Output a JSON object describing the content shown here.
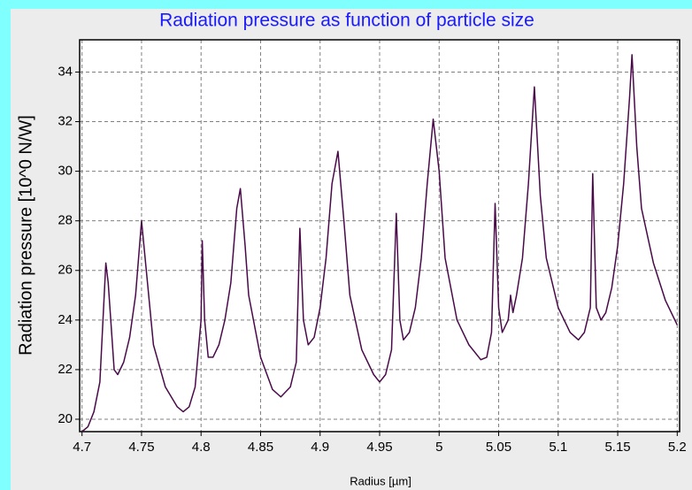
{
  "chart_data": {
    "type": "line",
    "title": "Radiation pressure as function of particle size",
    "x_label": "Radius [µm]",
    "y_label": "Radiation pressure [10^0 N/W]",
    "x": [
      4.7,
      4.705,
      4.71,
      4.715,
      4.72,
      4.722,
      4.727,
      4.73,
      4.735,
      4.74,
      4.745,
      4.75,
      4.755,
      4.76,
      4.77,
      4.78,
      4.785,
      4.79,
      4.795,
      4.8,
      4.801,
      4.803,
      4.806,
      4.81,
      4.815,
      4.82,
      4.825,
      4.83,
      4.833,
      4.837,
      4.84,
      4.85,
      4.86,
      4.867,
      4.875,
      4.88,
      4.883,
      4.886,
      4.89,
      4.895,
      4.9,
      4.905,
      4.91,
      4.915,
      4.92,
      4.925,
      4.935,
      4.945,
      4.95,
      4.955,
      4.96,
      4.964,
      4.967,
      4.97,
      4.975,
      4.98,
      4.985,
      4.99,
      4.995,
      5.0,
      5.005,
      5.015,
      5.025,
      5.035,
      5.04,
      5.044,
      5.047,
      5.05,
      5.053,
      5.058,
      5.06,
      5.062,
      5.065,
      5.07,
      5.075,
      5.08,
      5.085,
      5.09,
      5.1,
      5.11,
      5.117,
      5.122,
      5.127,
      5.129,
      5.132,
      5.136,
      5.14,
      5.145,
      5.15,
      5.155,
      5.16,
      5.162,
      5.166,
      5.17,
      5.18,
      5.19,
      5.2
    ],
    "series": [
      {
        "name": "Radiation pressure",
        "color": "#4a0a4a",
        "values": [
          19.5,
          19.7,
          20.3,
          21.5,
          26.3,
          25.5,
          22.0,
          21.8,
          22.3,
          23.3,
          25.0,
          28.0,
          25.5,
          23.0,
          21.3,
          20.5,
          20.3,
          20.5,
          21.3,
          24.0,
          27.2,
          24.0,
          22.5,
          22.5,
          23.0,
          24.0,
          25.5,
          28.5,
          29.3,
          27.0,
          25.0,
          22.5,
          21.2,
          20.9,
          21.3,
          22.3,
          27.7,
          24.0,
          23.0,
          23.3,
          24.5,
          26.5,
          29.5,
          30.8,
          28.0,
          25.0,
          22.8,
          21.8,
          21.5,
          21.8,
          22.8,
          28.3,
          24.0,
          23.2,
          23.5,
          24.5,
          26.5,
          29.5,
          32.1,
          30.0,
          26.5,
          24.0,
          23.0,
          22.4,
          22.5,
          23.5,
          28.7,
          24.5,
          23.5,
          24.0,
          25.0,
          24.3,
          25.0,
          26.5,
          29.5,
          33.4,
          29.0,
          26.5,
          24.5,
          23.5,
          23.2,
          23.5,
          24.5,
          29.9,
          24.5,
          24.0,
          24.3,
          25.3,
          27.0,
          29.5,
          33.0,
          34.7,
          31.0,
          28.5,
          26.3,
          24.8,
          23.8
        ]
      }
    ],
    "xlim": [
      4.698,
      5.202
    ],
    "ylim": [
      19.5,
      35.3
    ],
    "xticks": [
      4.7,
      4.75,
      4.8,
      4.85,
      4.9,
      4.95,
      5,
      5.05,
      5.1,
      5.15,
      5.2
    ],
    "yticks": [
      20,
      22,
      24,
      26,
      28,
      30,
      32,
      34
    ],
    "grid": true
  }
}
